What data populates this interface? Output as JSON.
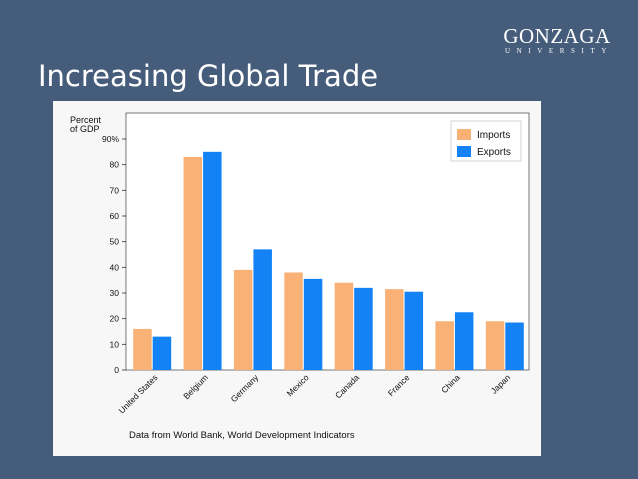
{
  "slide": {
    "title": "Increasing Global Trade",
    "logo_main": "GONZAGA",
    "logo_sub": "UNIVERSITY"
  },
  "chart_data": {
    "type": "bar",
    "categories": [
      "United States",
      "Belgium",
      "Germany",
      "Mexico",
      "Canada",
      "France",
      "China",
      "Japan"
    ],
    "series": [
      {
        "name": "Imports",
        "color": "#f9b176",
        "values": [
          16,
          83,
          39,
          38,
          34,
          31.5,
          19,
          19
        ]
      },
      {
        "name": "Exports",
        "color": "#1282f5",
        "values": [
          13,
          85,
          47,
          35.5,
          32,
          30.5,
          22.5,
          18.5
        ]
      }
    ],
    "ylabel": "Percent\nof GDP",
    "ylabel_lines": [
      "Percent",
      "of GDP"
    ],
    "yticks": [
      "0",
      "10",
      "20",
      "30",
      "40",
      "50",
      "60",
      "70",
      "80",
      "90%"
    ],
    "ylim": [
      0,
      90
    ],
    "legend_position": "top-right",
    "source": "Data from World Bank, World Development Indicators",
    "grid": false
  }
}
